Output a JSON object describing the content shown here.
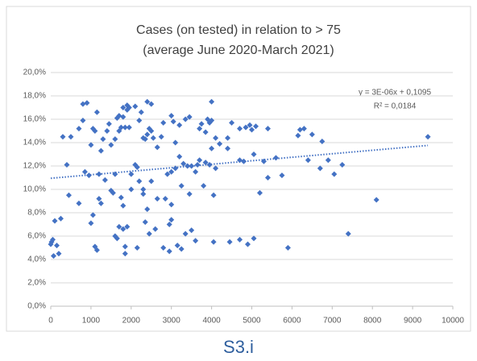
{
  "chart_data": {
    "type": "scatter",
    "title": "Cases (on tested) in relation to > 75",
    "subtitle": "(average June 2020-March 2021)",
    "caption": "S3.i",
    "color": "#4472c4",
    "grid": true,
    "trendline_equation": "y = 3E-06x + 0,1095",
    "trendline_r2": "R² = 0,0184",
    "trendline": {
      "color": "#4472c4",
      "x": [
        0,
        9380
      ],
      "values": [
        10.95,
        13.76
      ]
    },
    "xlim": [
      0,
      10000
    ],
    "xticks": [
      0,
      1000,
      2000,
      3000,
      4000,
      5000,
      6000,
      7000,
      8000,
      9000,
      10000
    ],
    "ylim": [
      0,
      20
    ],
    "yticks": [
      {
        "value": 0,
        "label": "0,0%"
      },
      {
        "value": 2,
        "label": "2,0%"
      },
      {
        "value": 4,
        "label": "4,0%"
      },
      {
        "value": 6,
        "label": "6,0%"
      },
      {
        "value": 8,
        "label": "8,0%"
      },
      {
        "value": 10,
        "label": "10,0%"
      },
      {
        "value": 12,
        "label": "12,0%"
      },
      {
        "value": 14,
        "label": "14,0%"
      },
      {
        "value": 16,
        "label": "16,0%"
      },
      {
        "value": 18,
        "label": "18,0%"
      },
      {
        "value": 20,
        "label": "20,0%"
      }
    ],
    "x": [
      0,
      20,
      50,
      70,
      100,
      150,
      200,
      250,
      300,
      400,
      450,
      500,
      700,
      700,
      800,
      800,
      850,
      900,
      950,
      1000,
      1000,
      1050,
      1050,
      1100,
      1100,
      1150,
      1150,
      1200,
      1200,
      1250,
      1250,
      1300,
      1350,
      1400,
      1450,
      1500,
      1500,
      1550,
      1600,
      1600,
      1600,
      1650,
      1650,
      1700,
      1700,
      1700,
      1750,
      1750,
      1800,
      1800,
      1800,
      1800,
      1850,
      1850,
      1850,
      1900,
      1900,
      1900,
      1950,
      1950,
      2000,
      2000,
      2100,
      2100,
      2150,
      2150,
      2200,
      2200,
      2250,
      2300,
      2300,
      2300,
      2350,
      2350,
      2400,
      2400,
      2400,
      2450,
      2450,
      2500,
      2500,
      2500,
      2550,
      2600,
      2650,
      2650,
      2750,
      2800,
      2800,
      2850,
      2900,
      2950,
      2950,
      3000,
      3000,
      3000,
      3000,
      3050,
      3100,
      3100,
      3150,
      3200,
      3200,
      3250,
      3250,
      3300,
      3350,
      3350,
      3400,
      3450,
      3450,
      3500,
      3500,
      3600,
      3600,
      3650,
      3700,
      3700,
      3750,
      3800,
      3850,
      3850,
      3900,
      3950,
      3950,
      4000,
      4000,
      4000,
      4050,
      4050,
      4100,
      4100,
      4200,
      4400,
      4400,
      4450,
      4500,
      4700,
      4700,
      4700,
      4800,
      4850,
      4900,
      4950,
      5000,
      5050,
      5050,
      5100,
      5200,
      5300,
      5400,
      5400,
      5600,
      5750,
      5900,
      6150,
      6200,
      6300,
      6400,
      6500,
      6700,
      6750,
      6900,
      7050,
      7250,
      7400,
      8100,
      9380
    ],
    "values": [
      5.3,
      5.5,
      5.7,
      4.3,
      7.3,
      5.2,
      4.5,
      7.5,
      14.5,
      12.1,
      9.5,
      14.5,
      8.8,
      15.2,
      17.3,
      15.9,
      11.5,
      17.4,
      11.2,
      7.1,
      13.8,
      7.8,
      15.2,
      5.1,
      15,
      4.8,
      16.6,
      9.2,
      11.3,
      8.8,
      13.3,
      14.3,
      10.8,
      15,
      15.6,
      13.8,
      9.9,
      9.7,
      6,
      11.3,
      14.3,
      5.8,
      16.1,
      6.8,
      15,
      16.3,
      15.3,
      9.3,
      6.6,
      8.6,
      16.2,
      17,
      4.5,
      5.1,
      15.3,
      6.8,
      17.2,
      16.8,
      15.3,
      17,
      10,
      11.3,
      12.1,
      17.1,
      5,
      11.9,
      10.7,
      15.9,
      16.6,
      9.6,
      10,
      14.4,
      7.2,
      14.3,
      8.3,
      14.7,
      17.5,
      6.2,
      15.2,
      10.7,
      15,
      17.3,
      14.4,
      6.6,
      9.2,
      13.6,
      14.5,
      5,
      15.7,
      9.2,
      11.3,
      4.7,
      7,
      7.4,
      8.7,
      11.5,
      16.3,
      15.8,
      11.8,
      14,
      5.2,
      12.8,
      15.5,
      10.3,
      4.9,
      12.2,
      6.2,
      16,
      12,
      16.2,
      9.6,
      6.5,
      12,
      11.5,
      5.6,
      12.1,
      15.2,
      12.5,
      15.6,
      10.3,
      12.3,
      14.9,
      16,
      15.7,
      12.1,
      17.5,
      13.5,
      15.9,
      9.5,
      5.5,
      11.8,
      14.4,
      13.9,
      13.5,
      14.4,
      5.5,
      15.7,
      15.2,
      12.5,
      5.7,
      12.4,
      15.3,
      5.3,
      15.5,
      15.1,
      5.8,
      13,
      15.4,
      9.7,
      12.4,
      15.2,
      11,
      12.7,
      11.2,
      5,
      14.6,
      15.1,
      15.2,
      12.5,
      14.7,
      11.8,
      14.1,
      12.5,
      11.3,
      12.1,
      6.2,
      9.1,
      14.5
    ]
  }
}
